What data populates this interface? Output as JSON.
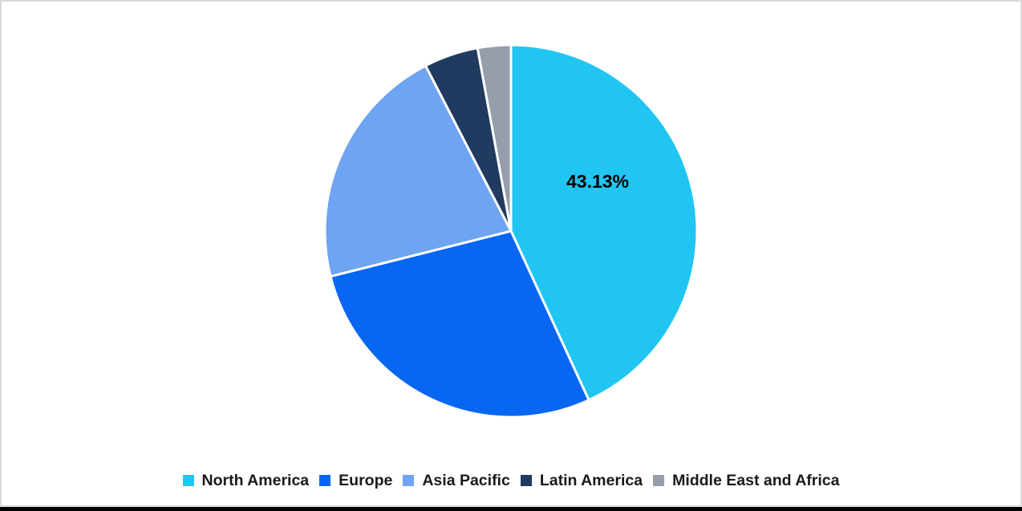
{
  "chart_data": {
    "type": "pie",
    "title": "",
    "categories": [
      "North America",
      "Europe",
      "Asia Pacific",
      "Latin America",
      "Middle East and Africa"
    ],
    "values": [
      43.13,
      27.95,
      21.33,
      4.71,
      2.88
    ],
    "colors": [
      "#21C5F2",
      "#0767F2",
      "#6EA4F1",
      "#203A60",
      "#969EAB"
    ],
    "data_label": {
      "slice_index": 0,
      "text": "43.13%",
      "color": "#000000"
    },
    "start_angle_deg": 0,
    "direction": "clockwise",
    "slice_separator_color": "#FFFFFF",
    "legend_position": "bottom",
    "grid": "off",
    "background": "#FFFFFF"
  },
  "frame": {
    "border_color": "#D9D9D9",
    "bottom_bar_color": "#000000",
    "background": "#FFFFFF"
  }
}
